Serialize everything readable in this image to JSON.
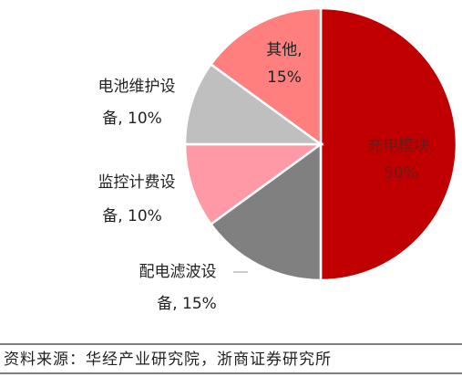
{
  "chart_data": {
    "type": "pie",
    "labels": [
      [
        "充电模块,",
        "50%"
      ],
      [
        "配电滤波设",
        "备, 15%"
      ],
      [
        "监控计费设",
        "备, 10%"
      ],
      [
        "电池维护设",
        "备, 10%"
      ],
      [
        "其他,",
        "15%"
      ]
    ],
    "values": [
      50,
      15,
      10,
      10,
      15
    ],
    "colors": [
      "#c00000",
      "#808080",
      "#ff99a6",
      "#bfbfbf",
      "#ff7f7f"
    ]
  },
  "source": "资料来源：华经产业研究院，浙商证券研究所"
}
